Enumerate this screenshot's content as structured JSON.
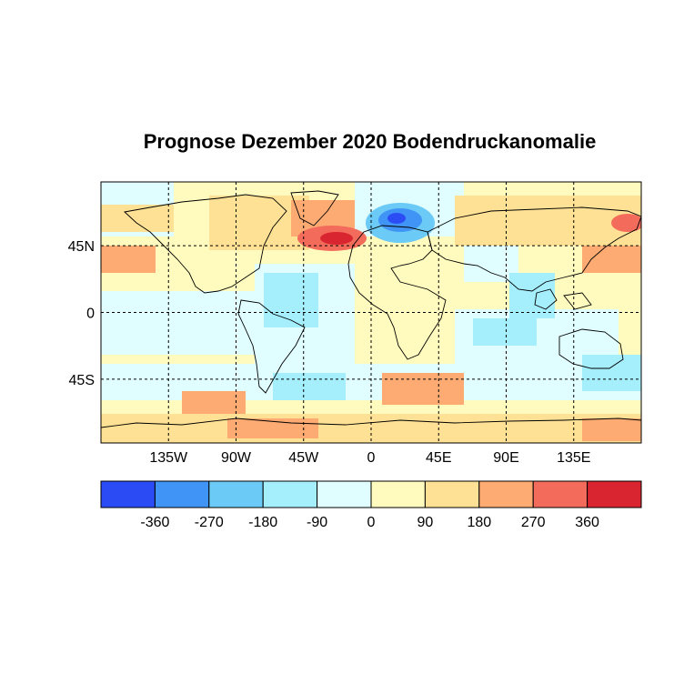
{
  "title": "Prognose Dezember 2020 Bodendruckanomalie",
  "map": {
    "lat_labels": [
      "45N",
      "0",
      "45S"
    ],
    "lon_labels": [
      "135W",
      "90W",
      "45W",
      "0",
      "45E",
      "90E",
      "135E"
    ],
    "lon_range": [
      -180,
      180
    ],
    "lat_range": [
      -88,
      88
    ],
    "gridlines": "dashed",
    "gridline_lons": [
      -135,
      -90,
      -45,
      0,
      45,
      90,
      135
    ],
    "gridline_lats": [
      45,
      0,
      -45
    ]
  },
  "colorbar": {
    "labels": [
      "-360",
      "-270",
      "-180",
      "-90",
      "0",
      "90",
      "180",
      "270",
      "360"
    ],
    "colors": [
      "#2b4cf5",
      "#3f94f6",
      "#6ccaf7",
      "#a5eefc",
      "#e0fdff",
      "#fffbbe",
      "#fee194",
      "#fdab73",
      "#f36b5b",
      "#d9252f"
    ]
  }
}
